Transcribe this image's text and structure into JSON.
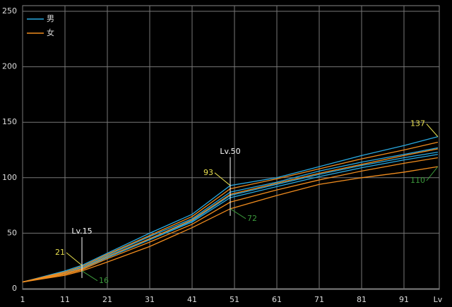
{
  "chart_data": {
    "type": "line",
    "x": [
      1,
      11,
      15,
      21,
      31,
      41,
      50,
      61,
      71,
      81,
      91,
      99
    ],
    "xlim": [
      1,
      99
    ],
    "xticks": [
      1,
      11,
      21,
      31,
      41,
      51,
      61,
      71,
      81,
      91
    ],
    "x_label": "Lv",
    "ylim": [
      0,
      250
    ],
    "yticks": [
      0,
      50,
      100,
      150,
      200,
      250
    ],
    "grid": true,
    "series": [
      {
        "name": "男",
        "color": "#29a9e0",
        "lines": [
          [
            6,
            16,
            21,
            32,
            50,
            67,
            93,
            100,
            110,
            120,
            129,
            137
          ],
          [
            6,
            15,
            19,
            30,
            47,
            63,
            87,
            96,
            106,
            114,
            121,
            127
          ],
          [
            6,
            14,
            18,
            29,
            45,
            61,
            84,
            94,
            103,
            111,
            118,
            123
          ],
          [
            6,
            14,
            18,
            28,
            44,
            60,
            82,
            92,
            101,
            109,
            116,
            121
          ]
        ]
      },
      {
        "name": "女",
        "color": "#f08c1e",
        "lines": [
          [
            6,
            15,
            20,
            31,
            48,
            65,
            90,
            99,
            108,
            117,
            125,
            132
          ],
          [
            6,
            14,
            18,
            29,
            45,
            62,
            85,
            95,
            104,
            112,
            120,
            126
          ],
          [
            6,
            13,
            17,
            27,
            42,
            58,
            78,
            89,
            98,
            106,
            113,
            118
          ],
          [
            6,
            12,
            16,
            24,
            38,
            55,
            72,
            84,
            94,
            100,
            105,
            110
          ]
        ]
      }
    ],
    "markers": [
      {
        "x": 15,
        "label": "Lv.15",
        "high": 21,
        "low": 16
      },
      {
        "x": 50,
        "label": "Lv.50",
        "high": 93,
        "low": 72
      }
    ],
    "end_labels": {
      "x": 99,
      "high": 137,
      "low": 110
    },
    "high_color": "#e8e050",
    "low_color": "#3c9a3c"
  }
}
